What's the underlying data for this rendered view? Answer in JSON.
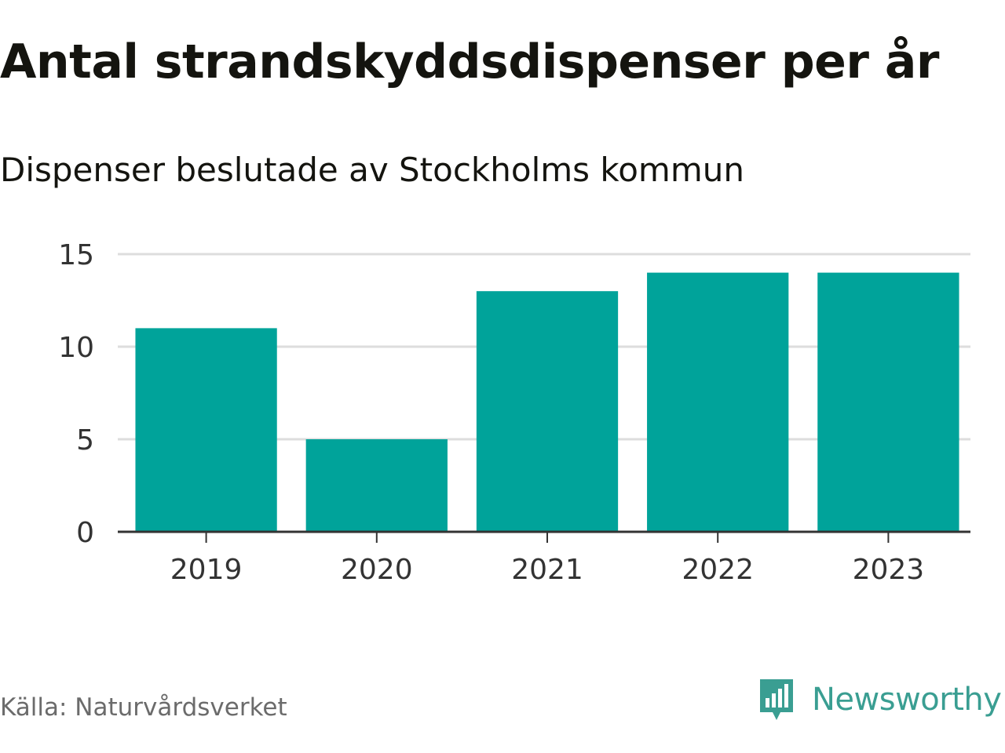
{
  "header": {
    "title": "Antal strandskyddsdispenser per år",
    "subtitle": "Dispenser beslutade av Stockholms kommun"
  },
  "footer": {
    "source": "Källa: Naturvårdsverket",
    "brand": "Newsworthy",
    "brand_icon": "bar-chart-speech-bubble-icon",
    "brand_color": "#3a9e92"
  },
  "colors": {
    "bar": "#00a39a",
    "grid": "#dddddd",
    "axis": "#333333",
    "tick_text": "#333333"
  },
  "chart_data": {
    "type": "bar",
    "title": "Antal strandskyddsdispenser per år",
    "subtitle": "Dispenser beslutade av Stockholms kommun",
    "categories": [
      "2019",
      "2020",
      "2021",
      "2022",
      "2023"
    ],
    "values": [
      11,
      5,
      13,
      14,
      14
    ],
    "xlabel": "",
    "ylabel": "",
    "ylim": [
      0,
      15
    ],
    "yticks": [
      0,
      5,
      10,
      15
    ],
    "grid": true,
    "legend": "none"
  }
}
